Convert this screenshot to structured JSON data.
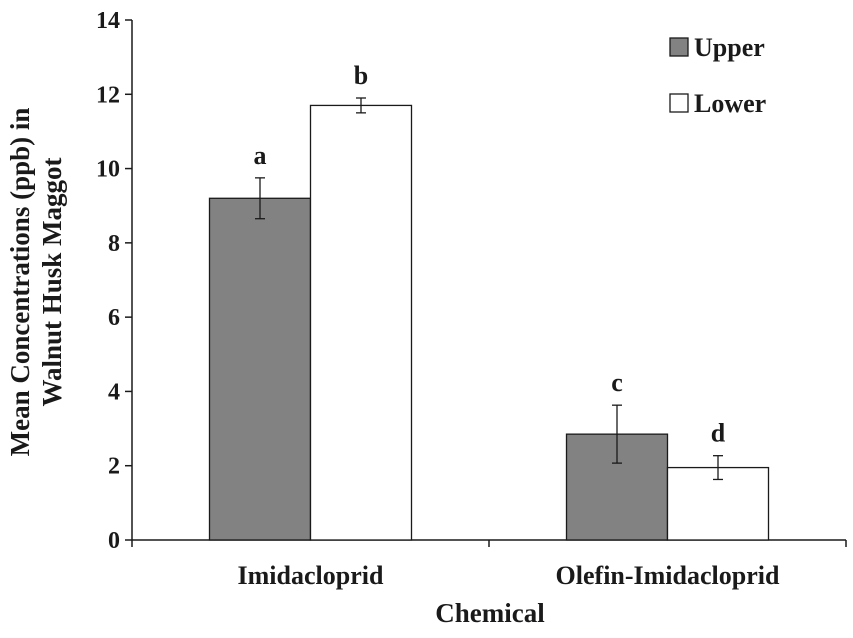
{
  "chart_data": {
    "type": "bar",
    "title": "",
    "xlabel": "Chemical",
    "ylabel_lines": [
      "Mean Concentrations (ppb) in",
      "Walnut Husk Maggot"
    ],
    "categories": [
      "Imidacloprid",
      "Olefin-Imidacloprid"
    ],
    "ylim": [
      0,
      14
    ],
    "yticks": [
      0,
      2,
      4,
      6,
      8,
      10,
      12,
      14
    ],
    "grid": false,
    "legend_position": "top-right",
    "series": [
      {
        "name": "Upper",
        "color": "#828282",
        "values": [
          9.2,
          2.85
        ],
        "errors": [
          0.55,
          0.78
        ],
        "sig_labels": [
          "a",
          "c"
        ]
      },
      {
        "name": "Lower",
        "color": "#ffffff",
        "values": [
          11.7,
          1.95
        ],
        "errors": [
          0.2,
          0.32
        ],
        "sig_labels": [
          "b",
          "d"
        ]
      }
    ]
  }
}
